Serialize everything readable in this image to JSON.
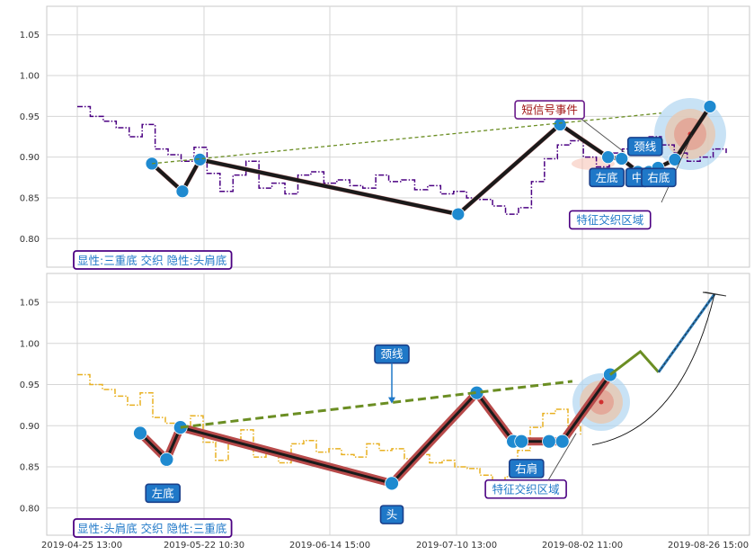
{
  "chart_data": [
    {
      "type": "line",
      "panel": "top",
      "ylim": [
        0.765,
        1.085
      ],
      "yticks": [
        0.8,
        0.85,
        0.9,
        0.95,
        1.0,
        1.05
      ],
      "ytick_labels": [
        "0.80",
        "0.85",
        "0.90",
        "0.95",
        "1.00",
        "1.05"
      ],
      "grid": true,
      "series": [
        {
          "role": "price",
          "color": "#4b0082",
          "style": "dash-dot",
          "x": [
            0,
            2,
            4,
            6,
            8,
            10,
            12,
            14,
            16,
            18,
            20,
            22,
            24,
            26,
            28,
            30,
            32,
            34,
            36,
            38,
            40,
            42,
            44,
            46,
            48,
            50,
            52,
            54,
            56,
            58,
            60,
            62,
            64,
            66,
            68,
            70,
            72,
            74,
            76,
            78,
            80,
            82,
            84,
            86,
            88,
            90,
            92,
            94,
            96,
            98,
            100
          ],
          "y": [
            0.962,
            0.95,
            0.944,
            0.936,
            0.925,
            0.94,
            0.91,
            0.903,
            0.895,
            0.912,
            0.88,
            0.858,
            0.878,
            0.895,
            0.862,
            0.868,
            0.855,
            0.878,
            0.882,
            0.868,
            0.872,
            0.865,
            0.862,
            0.878,
            0.87,
            0.872,
            0.86,
            0.865,
            0.855,
            0.858,
            0.85,
            0.848,
            0.84,
            0.83,
            0.838,
            0.87,
            0.898,
            0.915,
            0.92,
            0.9,
            0.888,
            0.905,
            0.91,
            0.918,
            0.925,
            0.915,
            0.905,
            0.895,
            0.9,
            0.91,
            0.905
          ]
        },
        {
          "role": "pattern",
          "color": "#1a1a1a",
          "x": [
            11.5,
            16.2,
            18.9,
            58.7,
            74.4,
            81.8,
            83.9,
            86.4,
            88.1,
            89.5,
            92.1,
            97.5
          ],
          "y": [
            0.892,
            0.858,
            0.897,
            0.83,
            0.94,
            0.9,
            0.898,
            0.882,
            0.882,
            0.887,
            0.897,
            0.962
          ]
        },
        {
          "role": "neckline",
          "color": "#6b8e23",
          "style": "dashed",
          "x": [
            11.5,
            90.0
          ],
          "y": [
            0.892,
            0.954
          ]
        }
      ],
      "annotations": [
        {
          "text": "短信号事件",
          "x": 72.8,
          "y": 0.958,
          "text_color": "#a01212"
        },
        {
          "text": "颈线",
          "x": 87.5,
          "y": 0.913
        },
        {
          "text": "左底",
          "x": 81.6,
          "y": 0.875
        },
        {
          "text": "中",
          "x": 86.3,
          "y": 0.875
        },
        {
          "text": "右底",
          "x": 89.6,
          "y": 0.875
        },
        {
          "text": "特征交织区域",
          "x": 82.1,
          "y": 0.823
        }
      ],
      "status": "显性:三重底 交织 隐性:头肩底"
    },
    {
      "type": "line",
      "panel": "bottom",
      "ylim": [
        0.767,
        1.085
      ],
      "yticks": [
        0.8,
        0.85,
        0.9,
        0.95,
        1.0,
        1.05
      ],
      "ytick_labels": [
        "0.80",
        "0.85",
        "0.90",
        "0.95",
        "1.00",
        "1.05"
      ],
      "xtick_labels": [
        "2019-04-25 13:00",
        "2019-05-22 10:30",
        "2019-06-14 15:00",
        "2019-07-10 13:00",
        "2019-08-02 11:00",
        "2019-08-26 15:00"
      ],
      "grid": true,
      "series": [
        {
          "role": "price",
          "color": "#e8b020",
          "style": "dash-dot",
          "x": [
            0,
            2,
            4,
            6,
            8,
            10,
            12,
            14,
            16,
            18,
            20,
            22,
            24,
            26,
            28,
            30,
            32,
            34,
            36,
            38,
            40,
            42,
            44,
            46,
            48,
            50,
            52,
            54,
            56,
            58,
            60,
            62,
            64,
            66,
            68,
            70,
            72,
            74,
            76,
            78,
            80
          ],
          "y": [
            0.962,
            0.95,
            0.944,
            0.936,
            0.925,
            0.94,
            0.91,
            0.903,
            0.895,
            0.912,
            0.88,
            0.858,
            0.878,
            0.895,
            0.862,
            0.868,
            0.855,
            0.878,
            0.882,
            0.868,
            0.872,
            0.865,
            0.862,
            0.878,
            0.87,
            0.872,
            0.86,
            0.865,
            0.855,
            0.858,
            0.85,
            0.848,
            0.84,
            0.83,
            0.838,
            0.87,
            0.898,
            0.915,
            0.92,
            0.9,
            0.888
          ]
        },
        {
          "role": "pattern",
          "color": "#1a1a1a",
          "x": [
            10.0,
            14.2,
            16.4,
            50.0,
            63.5,
            69.3,
            70.6,
            75.0,
            77.1,
            84.7
          ],
          "y": [
            0.891,
            0.859,
            0.898,
            0.83,
            0.94,
            0.881,
            0.881,
            0.881,
            0.881,
            0.962
          ]
        },
        {
          "role": "neckline",
          "color": "#6b8e23",
          "style": "dashed",
          "x": [
            16.4,
            78.7
          ],
          "y": [
            0.898,
            0.954
          ]
        },
        {
          "role": "projection",
          "color": "#6b8e23",
          "x": [
            84.7,
            89.5,
            92.4
          ],
          "y": [
            0.962,
            0.99,
            0.965
          ]
        },
        {
          "role": "projection",
          "color": "#2a7ab8",
          "x": [
            92.4,
            101.3
          ],
          "y": [
            0.965,
            1.06
          ]
        }
      ],
      "annotations": [
        {
          "text": "颈线",
          "x": 50.0,
          "y": 0.987
        },
        {
          "text": "左底",
          "x": 13.6,
          "y": 0.818
        },
        {
          "text": "头",
          "x": 50.0,
          "y": 0.792
        },
        {
          "text": "右肩",
          "x": 71.4,
          "y": 0.848
        },
        {
          "text": "特征交织区域",
          "x": 71.3,
          "y": 0.823
        }
      ],
      "status": "显性:头肩底 交织 隐性:三重底"
    }
  ]
}
